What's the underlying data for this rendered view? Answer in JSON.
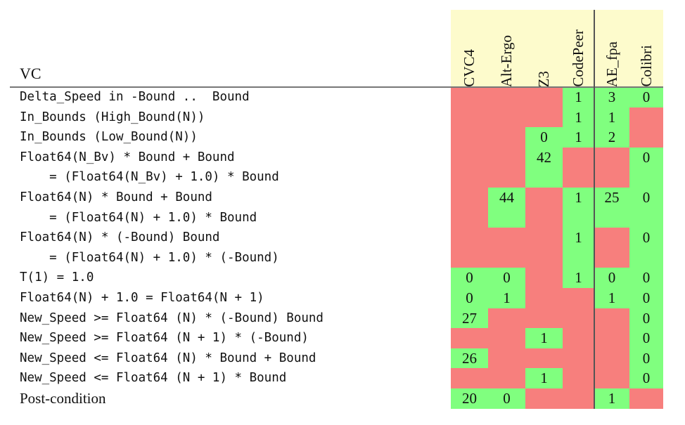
{
  "table": {
    "vc_header": "VC",
    "columns": [
      "CVC4",
      "Alt-Ergo",
      "Z3",
      "CodePeer",
      "AE_fpa",
      "Colibri"
    ],
    "colors": {
      "proved": "#80ff7f",
      "unproved": "#f77f7d",
      "header_bg": "#fdfbcc"
    },
    "rows": [
      {
        "label": "Delta_Speed in -Bound ..  Bound",
        "cells": [
          null,
          null,
          null,
          "1",
          "3",
          "0"
        ]
      },
      {
        "label": "In_Bounds (High_Bound(N))",
        "cells": [
          null,
          null,
          null,
          "1",
          "1",
          null
        ]
      },
      {
        "label": "In_Bounds (Low_Bound(N))",
        "cells": [
          null,
          null,
          "0",
          "1",
          "2",
          null
        ]
      },
      {
        "label": "Float64(N_Bv) * Bound + Bound",
        "cells": [
          null,
          null,
          "42",
          null,
          null,
          "0"
        ]
      },
      {
        "label": "    = (Float64(N_Bv) + 1.0) * Bound",
        "cells": [
          null,
          null,
          "",
          null,
          null,
          ""
        ]
      },
      {
        "label": "Float64(N) * Bound + Bound",
        "cells": [
          null,
          "44",
          null,
          "1",
          "25",
          "0"
        ]
      },
      {
        "label": "    = (Float64(N) + 1.0) * Bound",
        "cells": [
          null,
          "",
          null,
          "",
          "",
          ""
        ]
      },
      {
        "label": "Float64(N) * (-Bound) Bound",
        "cells": [
          null,
          null,
          null,
          "1",
          null,
          "0"
        ]
      },
      {
        "label": "    = (Float64(N) + 1.0) * (-Bound)",
        "cells": [
          null,
          null,
          null,
          "",
          null,
          ""
        ]
      },
      {
        "label": "T(1) = 1.0",
        "cells": [
          "0",
          "0",
          null,
          "1",
          "0",
          "0"
        ]
      },
      {
        "label": "Float64(N) + 1.0 = Float64(N + 1)",
        "cells": [
          "0",
          "1",
          null,
          null,
          "1",
          "0"
        ]
      },
      {
        "label": "New_Speed >= Float64 (N) * (-Bound) Bound",
        "cells": [
          "27",
          null,
          null,
          null,
          null,
          "0"
        ]
      },
      {
        "label": "New_Speed >= Float64 (N + 1) * (-Bound)",
        "cells": [
          null,
          null,
          "1",
          null,
          null,
          "0"
        ]
      },
      {
        "label": "New_Speed <= Float64 (N) * Bound + Bound",
        "cells": [
          "26",
          null,
          null,
          null,
          null,
          "0"
        ]
      },
      {
        "label": "New_Speed <= Float64 (N + 1) * Bound",
        "cells": [
          null,
          null,
          "1",
          null,
          null,
          "0"
        ]
      },
      {
        "label": "Post-condition",
        "cells": [
          "20",
          "0",
          null,
          null,
          "1",
          null
        ]
      }
    ]
  }
}
